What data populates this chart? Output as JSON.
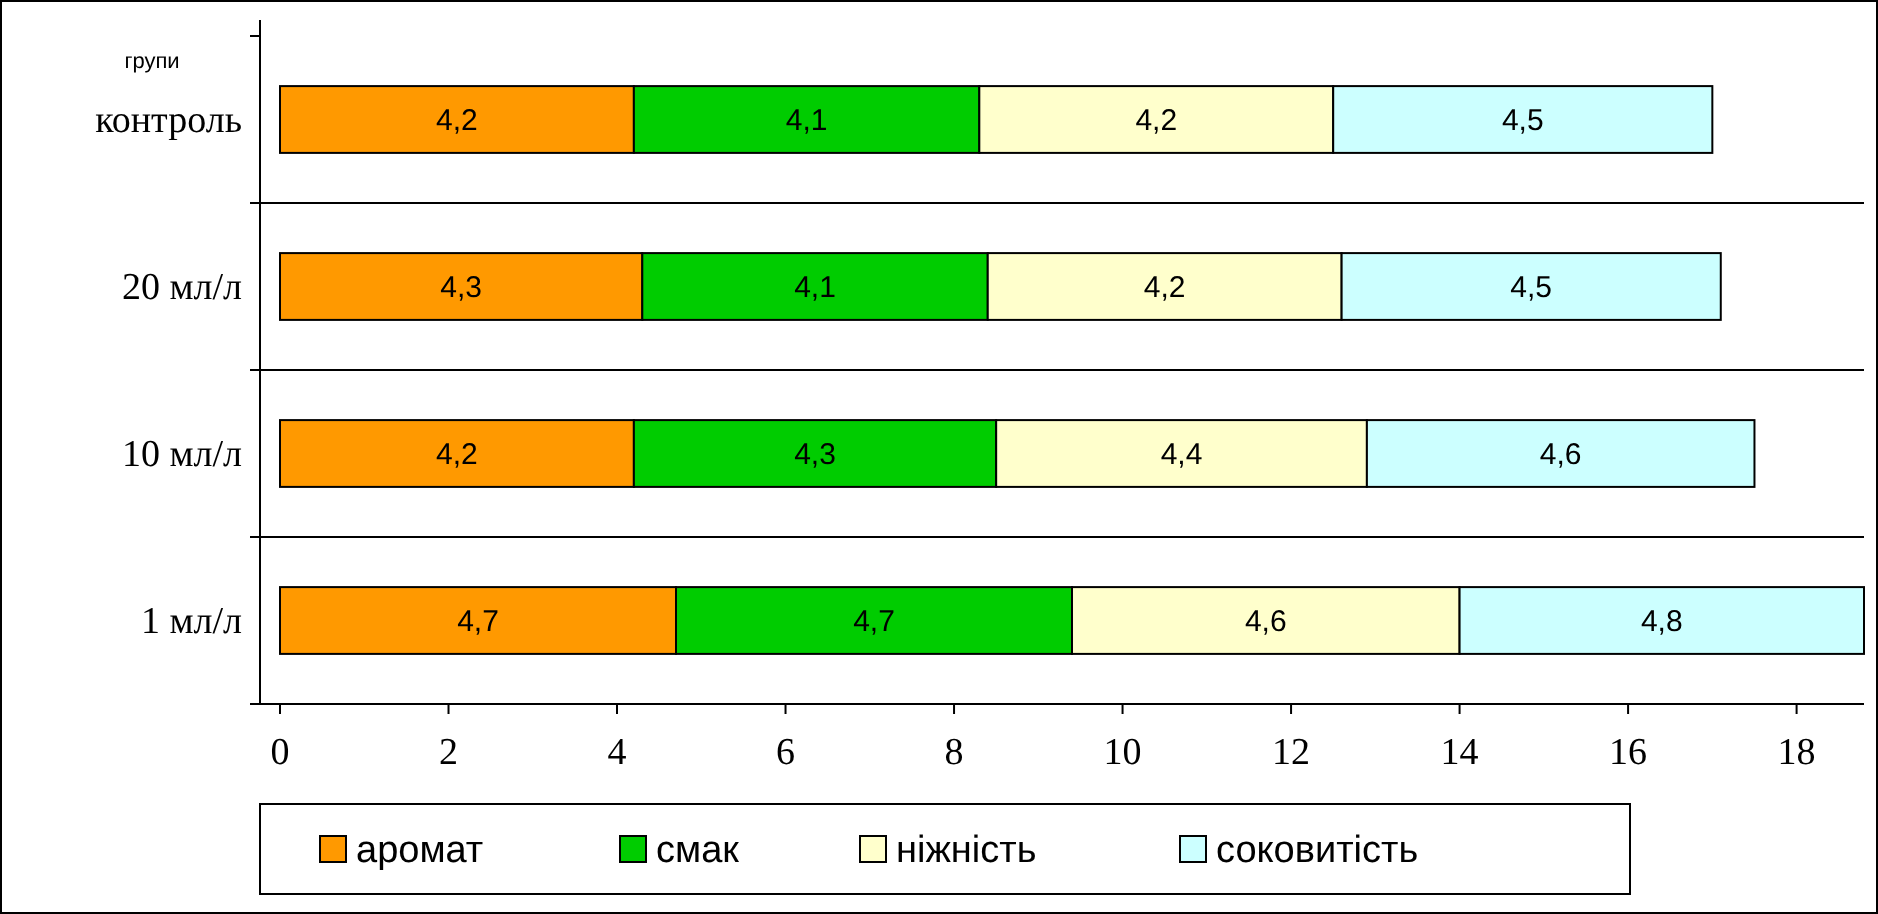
{
  "chart_data": {
    "type": "bar",
    "orientation": "horizontal",
    "stacked": true,
    "ylabel": "групи",
    "categories": [
      "контроль",
      "20 мл/л",
      "10 мл/л",
      "1 мл/л"
    ],
    "series": [
      {
        "name": "аромат",
        "color": "#ff9900",
        "values": [
          4.2,
          4.3,
          4.2,
          4.7
        ],
        "value_labels": [
          "4,2",
          "4,3",
          "4,2",
          "4,7"
        ]
      },
      {
        "name": "смак",
        "color": "#00cc00",
        "values": [
          4.1,
          4.1,
          4.3,
          4.7
        ],
        "value_labels": [
          "4,1",
          "4,1",
          "4,3",
          "4,7"
        ]
      },
      {
        "name": "ніжність",
        "color": "#ffffcc",
        "values": [
          4.2,
          4.2,
          4.4,
          4.6
        ],
        "value_labels": [
          "4,2",
          "4,2",
          "4,4",
          "4,6"
        ]
      },
      {
        "name": "соковитість",
        "color": "#ccffff",
        "values": [
          4.5,
          4.5,
          4.6,
          4.8
        ],
        "value_labels": [
          "4,5",
          "4,5",
          "4,6",
          "4,8"
        ]
      }
    ],
    "xlim": [
      0,
      18.8
    ],
    "xticks": [
      0,
      2,
      4,
      6,
      8,
      10,
      12,
      14,
      16,
      18
    ],
    "grid": "y",
    "legend": "bottom"
  }
}
